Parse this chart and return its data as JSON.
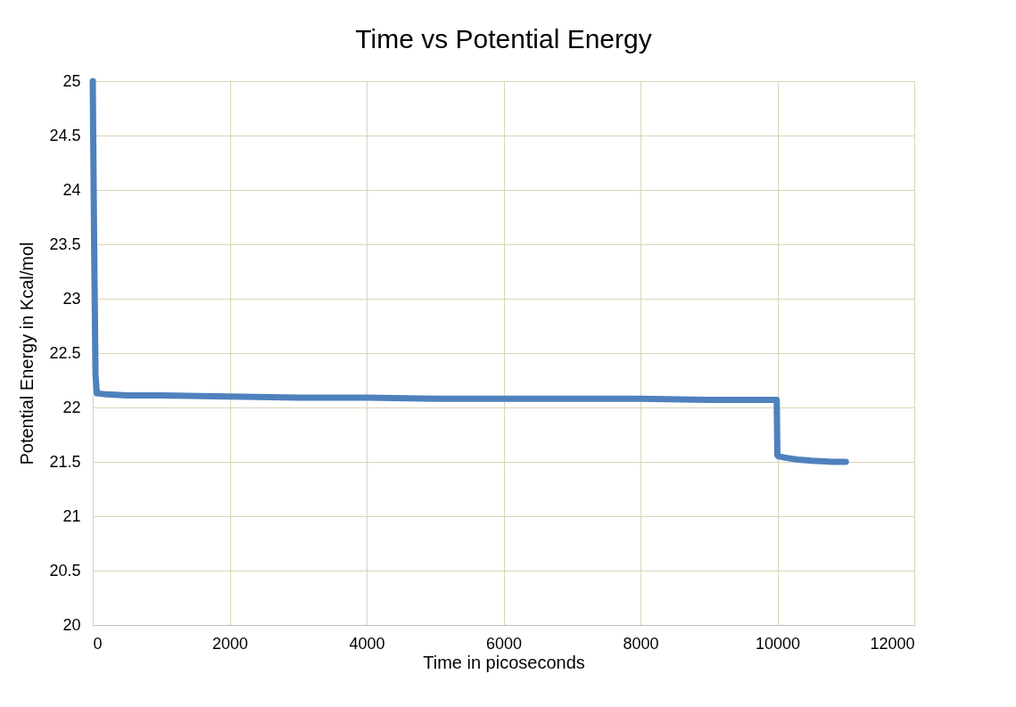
{
  "chart_data": {
    "type": "line",
    "title": "Time vs Potential Energy",
    "xlabel": "Time in picoseconds",
    "ylabel": "Potential Energy in Kcal/mol",
    "series": [
      {
        "color": "#4f81bd",
        "x": [
          0,
          20,
          40,
          60,
          200,
          500,
          1000,
          2000,
          3000,
          4000,
          5000,
          6000,
          7000,
          8000,
          9000,
          9990,
          10000,
          10020,
          10100,
          10200,
          10300,
          10500,
          10800,
          11000
        ],
        "values": [
          25,
          23.5,
          22.3,
          22.13,
          22.12,
          22.11,
          22.11,
          22.1,
          22.09,
          22.09,
          22.08,
          22.08,
          22.08,
          22.08,
          22.07,
          22.07,
          21.56,
          21.55,
          21.54,
          21.53,
          21.52,
          21.51,
          21.5,
          21.5
        ]
      }
    ],
    "xlim": [
      0,
      12000
    ],
    "xticks": [
      0,
      2000,
      4000,
      6000,
      8000,
      10000,
      12000
    ],
    "ylim": [
      20,
      25
    ],
    "yticks": [
      20,
      20.5,
      21,
      21.5,
      22,
      22.5,
      23,
      23.5,
      24,
      24.5,
      25
    ],
    "grid": true,
    "line_style": "solid",
    "marker": "none"
  }
}
